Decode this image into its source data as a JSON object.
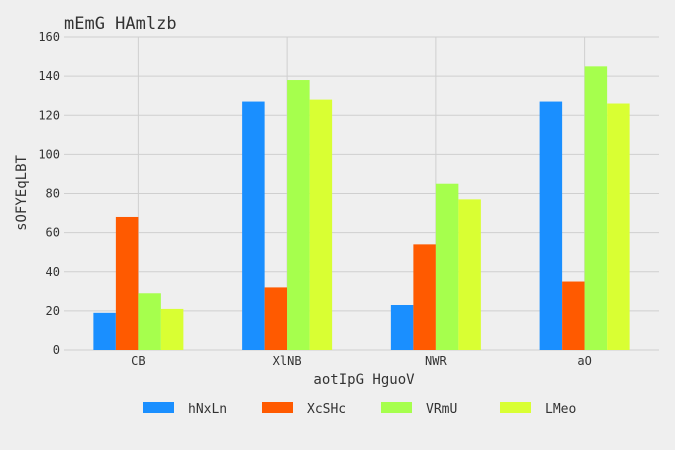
{
  "chart_data": {
    "type": "bar",
    "title": "mEmG HAmlzb",
    "xlabel": "aotIpG HguoV",
    "ylabel": "sOFYEqLBT",
    "categories": [
      "CB",
      "XlNB",
      "NWR",
      "aO"
    ],
    "ylim": [
      0,
      160
    ],
    "yticks": [
      0,
      20,
      40,
      60,
      80,
      100,
      120,
      140,
      160
    ],
    "grid": true,
    "legend_position": "bottom",
    "series": [
      {
        "name": "hNxLn",
        "color": "#1a8fff",
        "values": [
          19,
          127,
          23,
          127
        ]
      },
      {
        "name": "XcSHc",
        "color": "#ff5a00",
        "values": [
          68,
          32,
          54,
          35
        ]
      },
      {
        "name": "VRmU",
        "color": "#a6ff4d",
        "values": [
          29,
          138,
          85,
          145
        ]
      },
      {
        "name": "LMeo",
        "color": "#d9ff33",
        "values": [
          21,
          128,
          77,
          126
        ]
      }
    ]
  }
}
